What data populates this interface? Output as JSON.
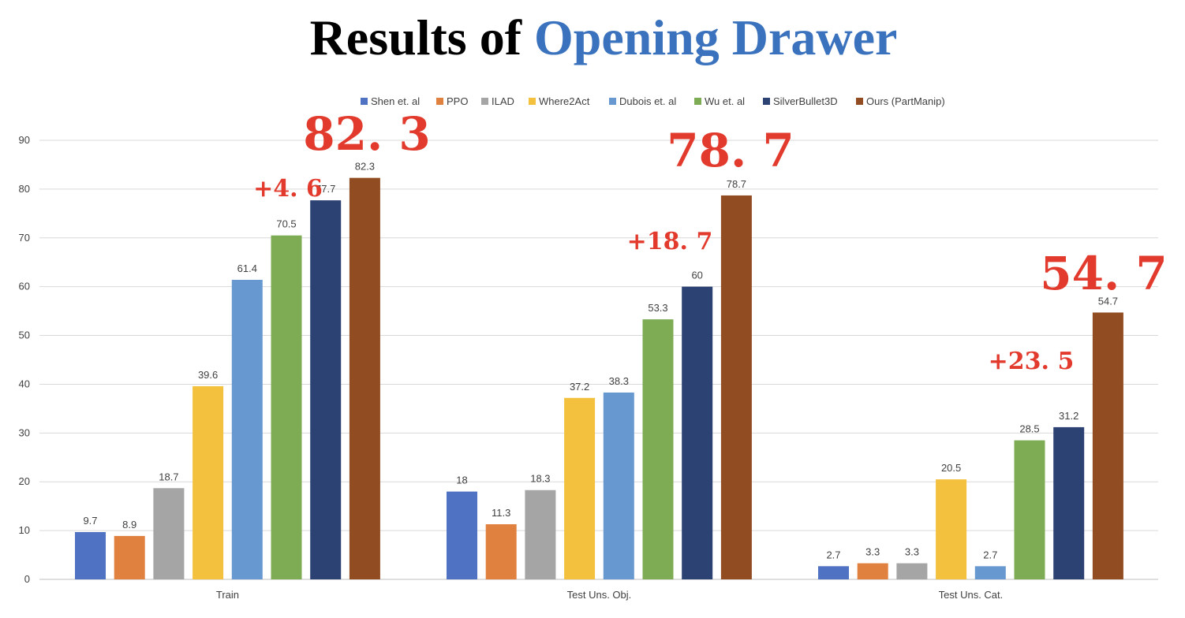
{
  "title": {
    "prefix": "Results of ",
    "accent": "Opening Drawer"
  },
  "colors": {
    "title_accent": "#3a72bd",
    "annotation": "#e23a2c",
    "grid": "#d9d9d9",
    "axis_text": "#404040"
  },
  "chart_data": {
    "type": "bar",
    "categories": [
      "Train",
      "Test Uns. Obj.",
      "Test Uns. Cat."
    ],
    "ylim": [
      0,
      90
    ],
    "yticks": [
      0,
      10,
      20,
      30,
      40,
      50,
      60,
      70,
      80,
      90
    ],
    "grid": true,
    "legend_position": "top",
    "series": [
      {
        "name": "Shen et. al",
        "color": "#4f72c2",
        "values": [
          9.7,
          18,
          2.7
        ]
      },
      {
        "name": "PPO",
        "color": "#e0813f",
        "values": [
          8.9,
          11.3,
          3.3
        ]
      },
      {
        "name": "ILAD",
        "color": "#a5a5a5",
        "values": [
          18.7,
          18.3,
          3.3
        ]
      },
      {
        "name": "Where2Act",
        "color": "#f3c13e",
        "values": [
          39.6,
          37.2,
          20.5
        ]
      },
      {
        "name": "Dubois et. al",
        "color": "#6898d0",
        "values": [
          61.4,
          38.3,
          2.7
        ]
      },
      {
        "name": "Wu et. al",
        "color": "#7dac55",
        "values": [
          70.5,
          53.3,
          28.5
        ]
      },
      {
        "name": "SilverBullet3D",
        "color": "#2c4273",
        "values": [
          77.7,
          60,
          31.2
        ]
      },
      {
        "name": "Ours (PartManip)",
        "color": "#914c22",
        "values": [
          82.3,
          78.7,
          54.7
        ]
      }
    ],
    "annotations": [
      {
        "category": 0,
        "big": "82. 3",
        "gain": "+4. 6"
      },
      {
        "category": 1,
        "big": "78. 7",
        "gain": "+18. 7"
      },
      {
        "category": 2,
        "big": "54. 7",
        "gain": "+23. 5"
      }
    ]
  }
}
